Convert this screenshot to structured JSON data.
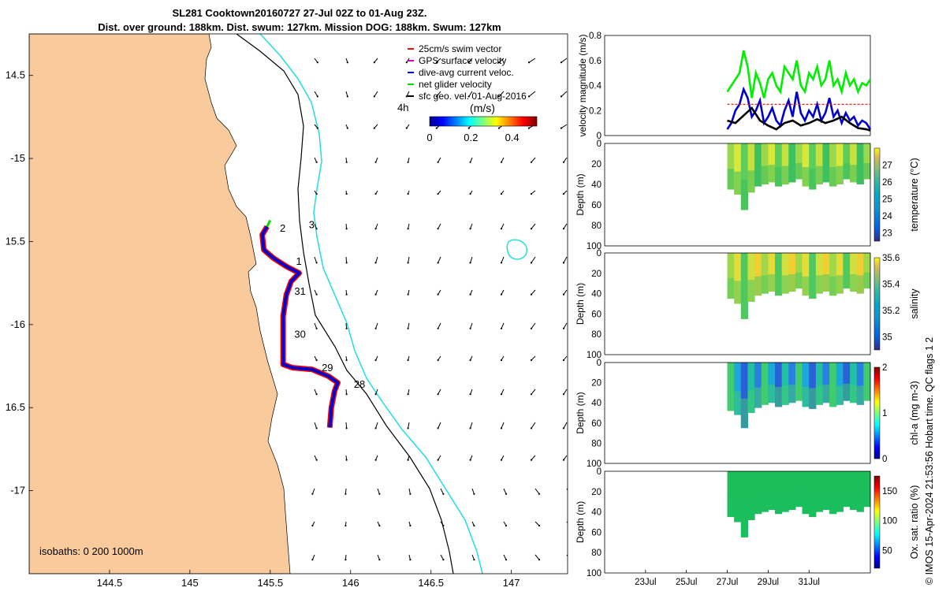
{
  "title": {
    "line1": "SL281 Cooktown20160727 27-Jul 02Z to 01-Aug 23Z.",
    "line2": "Dist. over ground: 188km. Dist. swum: 127km. Mission DOG: 188km. Swum: 127km"
  },
  "footer": "© IMOS 15-Apr-2024 21:53:56 Hobart time. QC flags 1  2",
  "chart_data": [
    {
      "type": "map",
      "xlim": [
        144.0,
        147.35
      ],
      "ylim": [
        -17.5,
        -14.25
      ],
      "x_ticks": [
        144.5,
        145,
        145.5,
        146,
        146.5,
        147
      ],
      "x_tick_labels": [
        "144.5",
        "145",
        "145.5",
        "146",
        "146.5",
        "147"
      ],
      "y_ticks": [
        -14.5,
        -15,
        -15.5,
        -16,
        -16.5,
        -17
      ],
      "y_tick_labels": [
        "14.5",
        "-15",
        "15.5",
        "-16",
        "16.5",
        "-17"
      ],
      "isobath_label": "isobaths: 0   200  1000m",
      "land_color": "#f9cb9c",
      "isobath_200_color": "#000000",
      "isobath_1000_color": "#22dde0",
      "track_color": "#0000cc",
      "swim_vector_color": "#ff0000",
      "legend": [
        {
          "label": "25cm/s swim vector",
          "color": "#ff0000"
        },
        {
          "label": "GPS surface velocity",
          "color": "#cc00cc"
        },
        {
          "label": "dive-avg current veloc.",
          "color": "#0000ff"
        },
        {
          "label": "net glider velocity",
          "color": "#00dd00"
        },
        {
          "label": "sfc geo. vel. 01-Aug-2016",
          "color": "#000000"
        }
      ],
      "legend_extra": "4h",
      "colorbar": {
        "label": "(m/s)",
        "ticks": [
          0,
          0.2,
          0.4
        ],
        "tick_labels": [
          "0",
          "0.2",
          "0.4"
        ],
        "range": [
          0,
          0.52
        ]
      },
      "day_labels": [
        {
          "text": "2",
          "lon": 145.56,
          "lat": -15.44
        },
        {
          "text": "3",
          "lon": 145.74,
          "lat": -15.42
        },
        {
          "text": "1",
          "lon": 145.66,
          "lat": -15.64
        },
        {
          "text": "31",
          "lon": 145.65,
          "lat": -15.82
        },
        {
          "text": "30",
          "lon": 145.65,
          "lat": -16.08
        },
        {
          "text": "29",
          "lon": 145.82,
          "lat": -16.28
        },
        {
          "text": "28",
          "lon": 146.02,
          "lat": -16.38
        }
      ],
      "track": [
        [
          145.87,
          -16.62
        ],
        [
          145.88,
          -16.5
        ],
        [
          145.9,
          -16.4
        ],
        [
          145.92,
          -16.35
        ],
        [
          145.86,
          -16.31
        ],
        [
          145.76,
          -16.27
        ],
        [
          145.64,
          -16.26
        ],
        [
          145.58,
          -16.24
        ],
        [
          145.58,
          -16.15
        ],
        [
          145.58,
          -16.05
        ],
        [
          145.58,
          -15.95
        ],
        [
          145.6,
          -15.82
        ],
        [
          145.63,
          -15.74
        ],
        [
          145.68,
          -15.69
        ],
        [
          145.6,
          -15.65
        ],
        [
          145.52,
          -15.6
        ],
        [
          145.46,
          -15.55
        ],
        [
          145.45,
          -15.46
        ],
        [
          145.48,
          -15.41
        ]
      ]
    },
    {
      "type": "line",
      "ylabel": "velocity magnitude (m/s)",
      "ylim": [
        0,
        0.8
      ],
      "y_ticks": [
        0,
        0.2,
        0.4,
        0.6,
        0.8
      ],
      "y_tick_labels": [
        "0",
        "0.2",
        "0.4",
        "0.6",
        "0.8"
      ],
      "xlim": [
        21,
        34
      ],
      "series": [
        {
          "color": "#00ee00",
          "x": [
            27,
            27.2,
            27.4,
            27.6,
            27.8,
            28,
            28.2,
            28.4,
            28.6,
            28.8,
            29,
            29.2,
            29.4,
            29.6,
            29.8,
            30,
            30.2,
            30.4,
            30.6,
            30.8,
            31,
            31.2,
            31.4,
            31.6,
            31.8,
            32,
            32.2,
            32.4,
            32.6,
            32.8,
            33,
            33.2,
            33.4,
            33.6,
            33.8,
            34
          ],
          "values": [
            0.35,
            0.4,
            0.45,
            0.5,
            0.68,
            0.55,
            0.3,
            0.5,
            0.42,
            0.3,
            0.45,
            0.5,
            0.4,
            0.35,
            0.55,
            0.5,
            0.45,
            0.6,
            0.4,
            0.35,
            0.5,
            0.45,
            0.55,
            0.4,
            0.45,
            0.6,
            0.4,
            0.45,
            0.35,
            0.5,
            0.4,
            0.45,
            0.35,
            0.42,
            0.4,
            0.45
          ]
        },
        {
          "color": "#0000cc",
          "x": [
            27,
            27.2,
            27.4,
            27.6,
            27.8,
            28,
            28.2,
            28.4,
            28.6,
            28.8,
            29,
            29.2,
            29.4,
            29.6,
            29.8,
            30,
            30.2,
            30.4,
            30.6,
            30.8,
            31,
            31.2,
            31.4,
            31.6,
            31.8,
            32,
            32.2,
            32.4,
            32.6,
            32.8,
            33,
            33.2,
            33.4,
            33.6,
            33.8,
            34
          ],
          "values": [
            0.05,
            0.1,
            0.2,
            0.25,
            0.37,
            0.3,
            0.15,
            0.2,
            0.28,
            0.1,
            0.15,
            0.22,
            0.12,
            0.08,
            0.2,
            0.28,
            0.15,
            0.35,
            0.18,
            0.12,
            0.2,
            0.15,
            0.25,
            0.12,
            0.18,
            0.3,
            0.15,
            0.2,
            0.1,
            0.18,
            0.12,
            0.15,
            0.08,
            0.12,
            0.1,
            0.05
          ]
        },
        {
          "color": "#000000",
          "x": [
            27,
            27.4,
            27.8,
            28.2,
            28.6,
            29,
            29.4,
            29.8,
            30.2,
            30.6,
            31,
            31.4,
            31.8,
            32.2,
            32.6,
            33,
            33.4,
            33.8,
            34
          ],
          "values": [
            0.12,
            0.1,
            0.16,
            0.22,
            0.12,
            0.08,
            0.05,
            0.1,
            0.12,
            0.08,
            0.1,
            0.13,
            0.1,
            0.12,
            0.15,
            0.1,
            0.06,
            0.05,
            0.04
          ]
        },
        {
          "color": "#ff0000",
          "dashed": true,
          "x": [
            27,
            34
          ],
          "values": [
            0.25,
            0.25
          ]
        }
      ]
    },
    {
      "type": "heatmap",
      "ylabel": "Depth (m)",
      "cbar_label": "temperature (°C)",
      "ylim": [
        100,
        0
      ],
      "y_ticks": [
        0,
        20,
        40,
        60,
        80,
        100
      ],
      "y_tick_labels": [
        "0",
        "20",
        "40",
        "60",
        "80",
        "100"
      ],
      "cbar_range": [
        22.5,
        28
      ],
      "cbar_ticks": [
        23,
        24,
        25,
        26,
        27
      ],
      "cbar_tick_labels": [
        "23",
        "24",
        "25",
        "26",
        "27"
      ],
      "colors": [
        "#d8e83a",
        "#c6e040",
        "#9cd84b",
        "#5ccc5a",
        "#3cc060"
      ],
      "depth_max": [
        45,
        50,
        65,
        48,
        42,
        40,
        38,
        42,
        40,
        38,
        35,
        42,
        45,
        40,
        38,
        42,
        40,
        35,
        38,
        40,
        35
      ]
    },
    {
      "type": "heatmap",
      "ylabel": "Depth (m)",
      "cbar_label": "salinity",
      "ylim": [
        100,
        0
      ],
      "y_ticks": [
        0,
        20,
        40,
        60,
        80,
        100
      ],
      "y_tick_labels": [
        "0",
        "20",
        "40",
        "60",
        "80",
        "100"
      ],
      "cbar_range": [
        34.9,
        35.6
      ],
      "cbar_ticks": [
        35,
        35.2,
        35.4,
        35.6
      ],
      "cbar_tick_labels": [
        "35",
        "35.2",
        "35.4",
        "35.6"
      ],
      "colors": [
        "#f0d030",
        "#e4dc38",
        "#d0e040",
        "#a0d84a",
        "#50c860"
      ],
      "depth_max": [
        45,
        50,
        65,
        48,
        42,
        40,
        38,
        42,
        40,
        38,
        35,
        42,
        45,
        40,
        38,
        42,
        40,
        35,
        38,
        40,
        35
      ]
    },
    {
      "type": "heatmap",
      "ylabel": "Depth (m)",
      "cbar_label": "chl-a (mg m-3)",
      "ylim": [
        100,
        0
      ],
      "y_ticks": [
        0,
        20,
        40,
        60,
        80,
        100
      ],
      "y_tick_labels": [
        "0",
        "20",
        "40",
        "60",
        "80",
        "100"
      ],
      "cbar_range": [
        0,
        2
      ],
      "cbar_ticks": [
        0,
        1,
        2
      ],
      "cbar_tick_labels": [
        "0",
        "1",
        "2"
      ],
      "colors": [
        "#2a60d8",
        "#2a80e0",
        "#1aa8d8",
        "#20c0a0",
        "#40cc70"
      ],
      "depth_max": [
        48,
        52,
        65,
        50,
        45,
        42,
        40,
        44,
        42,
        40,
        38,
        44,
        46,
        42,
        40,
        44,
        42,
        38,
        40,
        42,
        38
      ]
    },
    {
      "type": "heatmap",
      "ylabel": "Depth (m)",
      "cbar_label": "Ox. sat. ratio (%)",
      "ylim": [
        100,
        0
      ],
      "y_ticks": [
        0,
        20,
        40,
        60,
        80,
        100
      ],
      "y_tick_labels": [
        "0",
        "20",
        "40",
        "60",
        "80",
        "100"
      ],
      "x_ticks": [
        23,
        25,
        27,
        29,
        31
      ],
      "x_tick_labels": [
        "23Jul",
        "25Jul",
        "27Jul",
        "29Jul",
        "31Jul"
      ],
      "cbar_range": [
        20,
        175
      ],
      "cbar_ticks": [
        50,
        100,
        150
      ],
      "cbar_tick_labels": [
        "50",
        "100",
        "150"
      ],
      "colors": [
        "#18c060",
        "#20c460",
        "#1cbe5c"
      ],
      "depth_max": [
        45,
        50,
        65,
        48,
        42,
        40,
        38,
        42,
        40,
        38,
        35,
        42,
        45,
        40,
        38,
        42,
        40,
        35,
        38,
        40,
        35
      ]
    }
  ]
}
